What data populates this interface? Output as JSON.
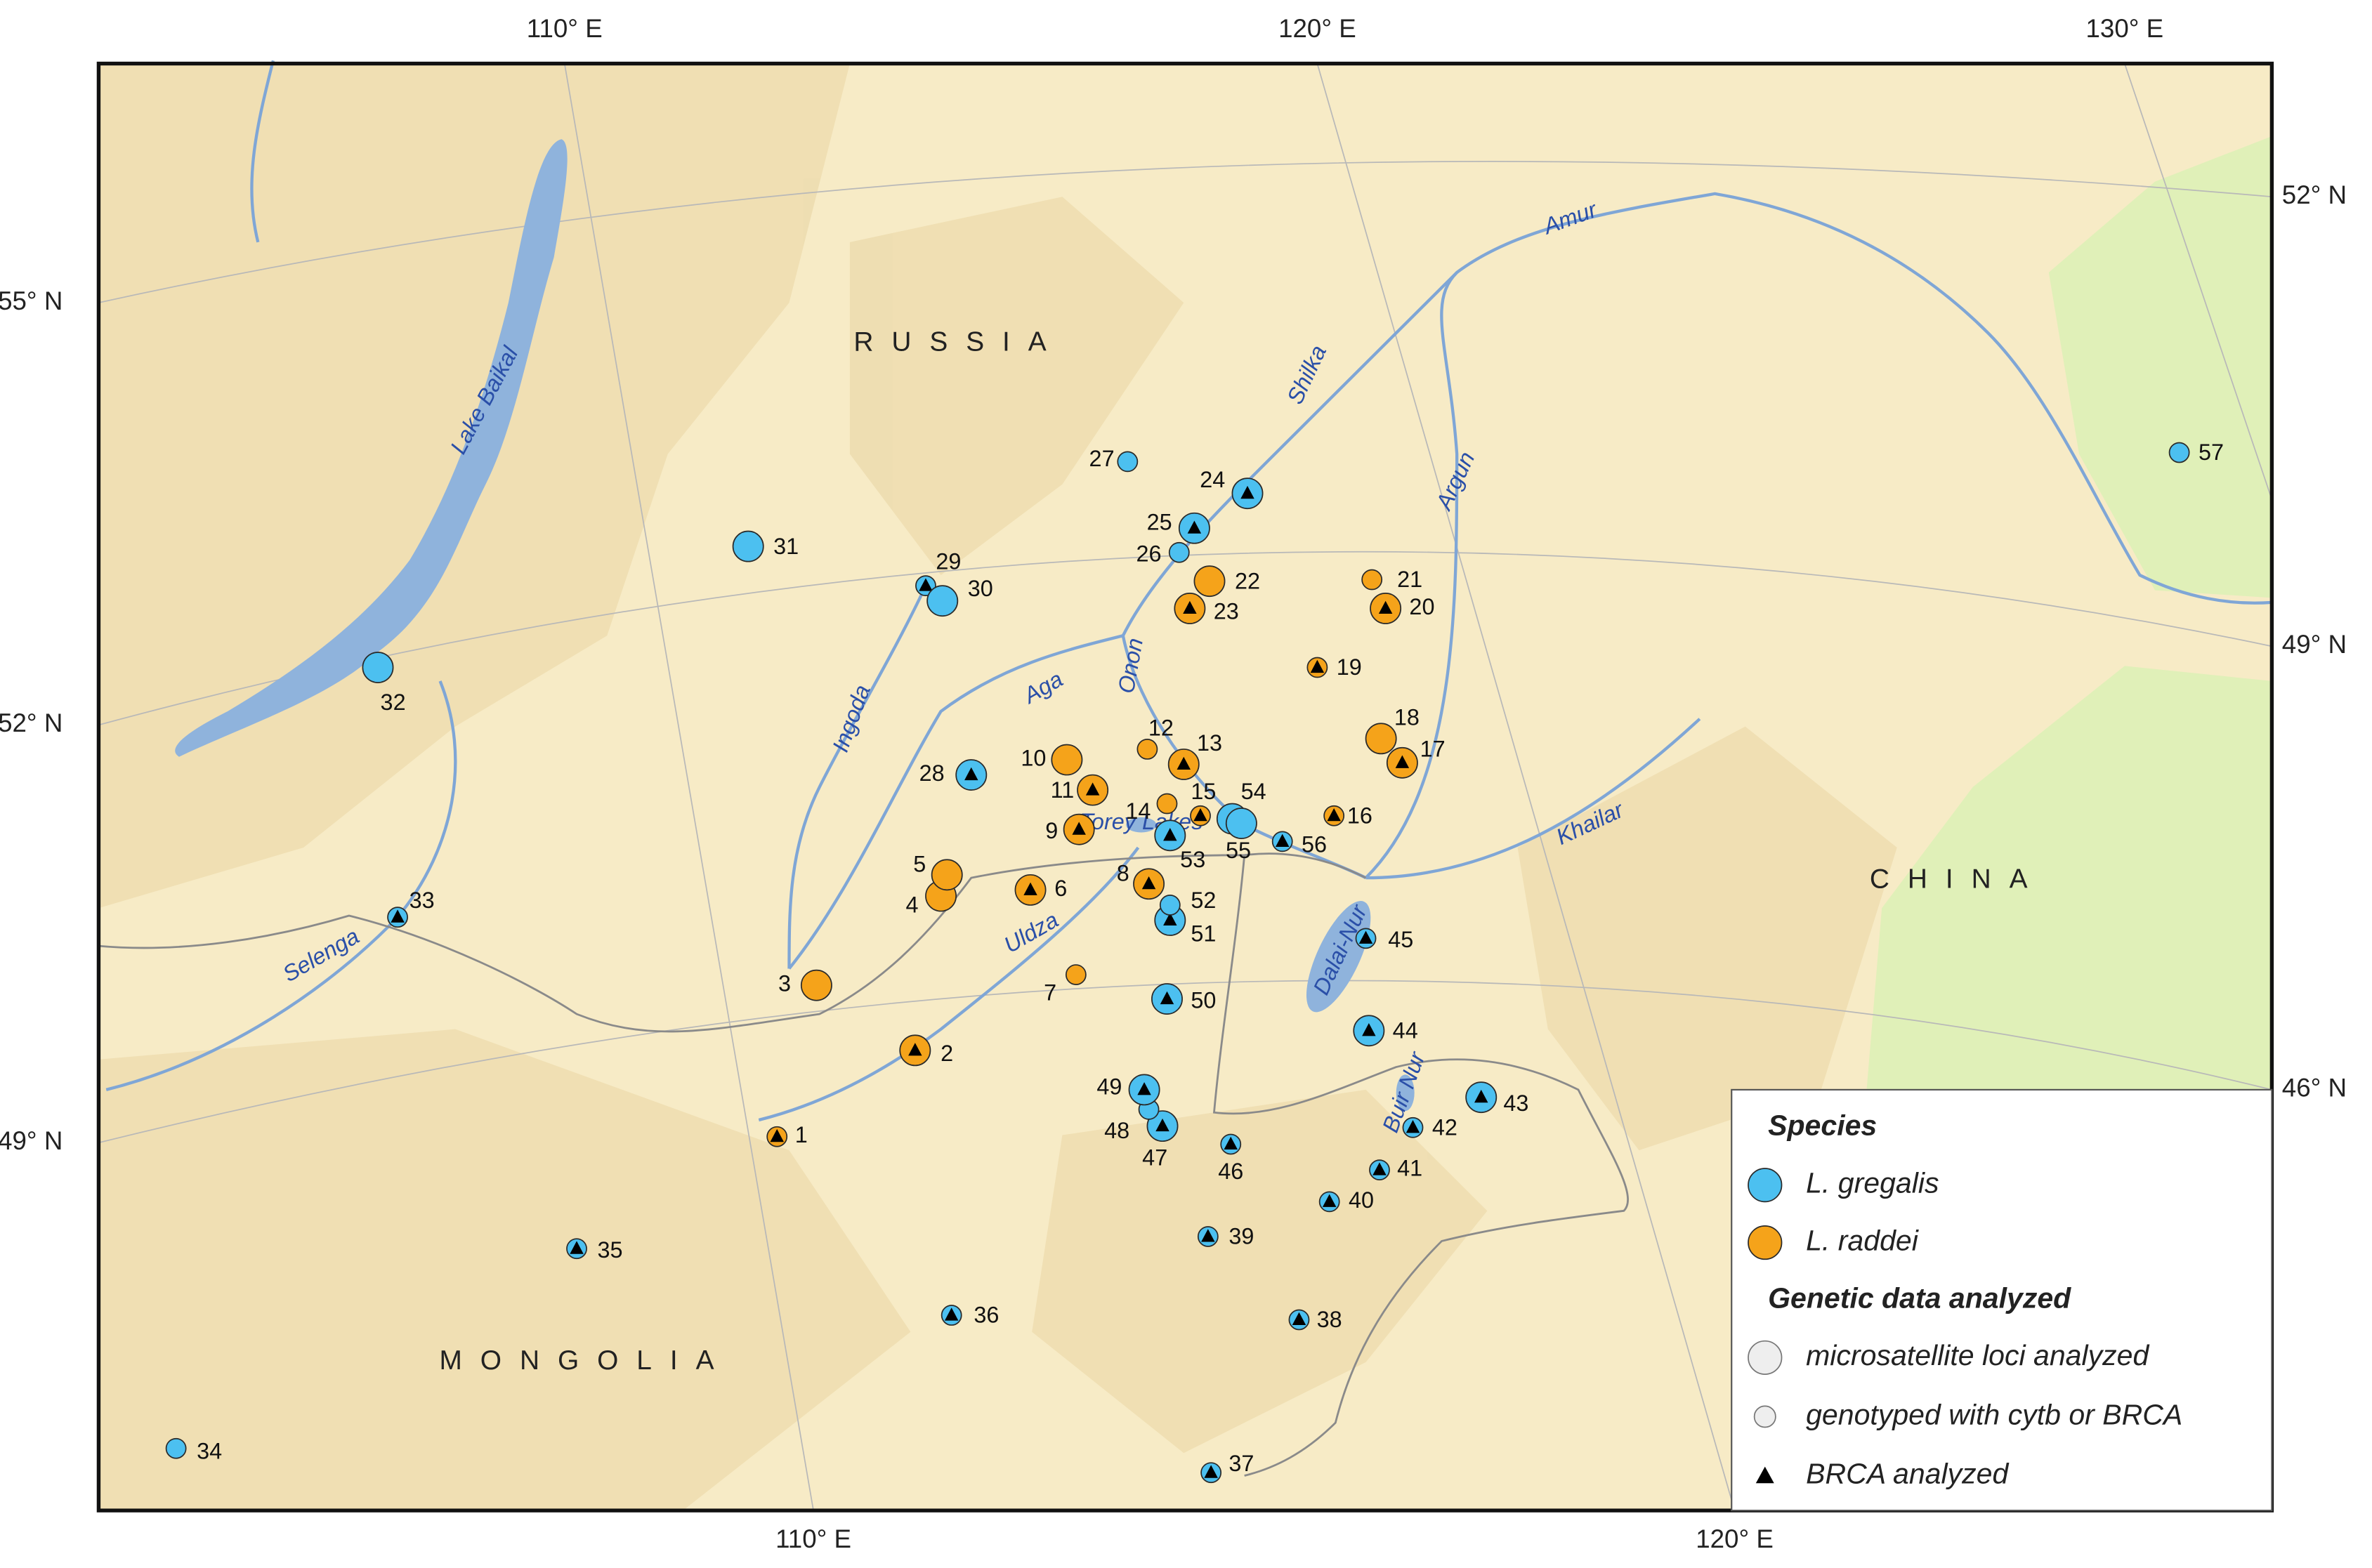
{
  "map": {
    "graticule": {
      "top": [
        "110° E",
        "120° E",
        "130° E"
      ],
      "bottom": [
        "110° E",
        "120° E"
      ],
      "left": [
        "55° N",
        "52° N",
        "49° N"
      ],
      "right": [
        "52° N",
        "49° N",
        "46° N"
      ]
    },
    "countries": [
      "RUSSIA",
      "CHINA",
      "MONGOLIA"
    ],
    "water": [
      "Lake Baikal",
      "Amur",
      "Shilka",
      "Argun",
      "Onon",
      "Aga",
      "Ingoda",
      "Uldza",
      "Selenga",
      "Khailar",
      "Torey Lakes",
      "Dalai-Nur",
      "Buir Nur"
    ],
    "legend": {
      "species_title": "Species",
      "species": [
        {
          "name": "L. gregalis",
          "color": "#4cc0f0"
        },
        {
          "name": "L. raddei",
          "color": "#f5a31a"
        }
      ],
      "data_title": "Genetic data analyzed",
      "data": [
        "microsatellite loci analyzed",
        "genotyped with cytb or BRCA",
        "BRCA analyzed"
      ]
    },
    "sites": [
      {
        "id": 1,
        "species": 1,
        "microsatellite": false,
        "brca": true
      },
      {
        "id": 2,
        "species": 1,
        "microsatellite": true,
        "brca": true
      },
      {
        "id": 3,
        "species": 1,
        "microsatellite": true,
        "brca": false
      },
      {
        "id": 4,
        "species": 1,
        "microsatellite": true,
        "brca": false
      },
      {
        "id": 5,
        "species": 1,
        "microsatellite": true,
        "brca": false
      },
      {
        "id": 6,
        "species": 1,
        "microsatellite": true,
        "brca": true
      },
      {
        "id": 7,
        "species": 1,
        "microsatellite": false,
        "brca": false
      },
      {
        "id": 8,
        "species": 1,
        "microsatellite": true,
        "brca": true
      },
      {
        "id": 9,
        "species": 1,
        "microsatellite": true,
        "brca": true
      },
      {
        "id": 10,
        "species": 1,
        "microsatellite": true,
        "brca": false
      },
      {
        "id": 11,
        "species": 1,
        "microsatellite": true,
        "brca": true
      },
      {
        "id": 12,
        "species": 1,
        "microsatellite": false,
        "brca": false
      },
      {
        "id": 13,
        "species": 1,
        "microsatellite": true,
        "brca": true
      },
      {
        "id": 14,
        "species": 1,
        "microsatellite": false,
        "brca": false
      },
      {
        "id": 15,
        "species": 1,
        "microsatellite": false,
        "brca": true
      },
      {
        "id": 16,
        "species": 1,
        "microsatellite": false,
        "brca": true
      },
      {
        "id": 17,
        "species": 1,
        "microsatellite": true,
        "brca": true
      },
      {
        "id": 18,
        "species": 1,
        "microsatellite": true,
        "brca": false
      },
      {
        "id": 19,
        "species": 1,
        "microsatellite": false,
        "brca": true
      },
      {
        "id": 20,
        "species": 1,
        "microsatellite": true,
        "brca": true
      },
      {
        "id": 21,
        "species": 1,
        "microsatellite": false,
        "brca": false
      },
      {
        "id": 22,
        "species": 1,
        "microsatellite": true,
        "brca": false
      },
      {
        "id": 23,
        "species": 1,
        "microsatellite": true,
        "brca": true
      },
      {
        "id": 24,
        "species": 0,
        "microsatellite": true,
        "brca": true
      },
      {
        "id": 25,
        "species": 0,
        "microsatellite": true,
        "brca": true
      },
      {
        "id": 26,
        "species": 0,
        "microsatellite": false,
        "brca": false
      },
      {
        "id": 27,
        "species": 0,
        "microsatellite": false,
        "brca": false
      },
      {
        "id": 28,
        "species": 0,
        "microsatellite": true,
        "brca": true
      },
      {
        "id": 29,
        "species": 0,
        "microsatellite": false,
        "brca": true
      },
      {
        "id": 30,
        "species": 0,
        "microsatellite": true,
        "brca": false
      },
      {
        "id": 31,
        "species": 0,
        "microsatellite": true,
        "brca": false
      },
      {
        "id": 32,
        "species": 0,
        "microsatellite": true,
        "brca": false
      },
      {
        "id": 33,
        "species": 0,
        "microsatellite": false,
        "brca": true
      },
      {
        "id": 34,
        "species": 0,
        "microsatellite": false,
        "brca": false
      },
      {
        "id": 35,
        "species": 0,
        "microsatellite": false,
        "brca": true
      },
      {
        "id": 36,
        "species": 0,
        "microsatellite": false,
        "brca": true
      },
      {
        "id": 37,
        "species": 0,
        "microsatellite": false,
        "brca": true
      },
      {
        "id": 38,
        "species": 0,
        "microsatellite": false,
        "brca": true
      },
      {
        "id": 39,
        "species": 0,
        "microsatellite": false,
        "brca": true
      },
      {
        "id": 40,
        "species": 0,
        "microsatellite": false,
        "brca": true
      },
      {
        "id": 41,
        "species": 0,
        "microsatellite": false,
        "brca": true
      },
      {
        "id": 42,
        "species": 0,
        "microsatellite": false,
        "brca": true
      },
      {
        "id": 43,
        "species": 0,
        "microsatellite": true,
        "brca": true
      },
      {
        "id": 44,
        "species": 0,
        "microsatellite": true,
        "brca": true
      },
      {
        "id": 45,
        "species": 0,
        "microsatellite": false,
        "brca": true
      },
      {
        "id": 46,
        "species": 0,
        "microsatellite": false,
        "brca": true
      },
      {
        "id": 47,
        "species": 0,
        "microsatellite": true,
        "brca": true
      },
      {
        "id": 48,
        "species": 0,
        "microsatellite": false,
        "brca": false
      },
      {
        "id": 49,
        "species": 0,
        "microsatellite": true,
        "brca": true
      },
      {
        "id": 50,
        "species": 0,
        "microsatellite": true,
        "brca": true
      },
      {
        "id": 51,
        "species": 0,
        "microsatellite": true,
        "brca": true
      },
      {
        "id": 52,
        "species": 0,
        "microsatellite": false,
        "brca": false
      },
      {
        "id": 53,
        "species": 0,
        "microsatellite": true,
        "brca": true
      },
      {
        "id": 54,
        "species": 0,
        "microsatellite": true,
        "brca": true
      },
      {
        "id": 55,
        "species": 0,
        "microsatellite": true,
        "brca": false
      },
      {
        "id": 56,
        "species": 0,
        "microsatellite": false,
        "brca": true
      },
      {
        "id": 57,
        "species": 0,
        "microsatellite": false,
        "brca": false
      }
    ]
  }
}
